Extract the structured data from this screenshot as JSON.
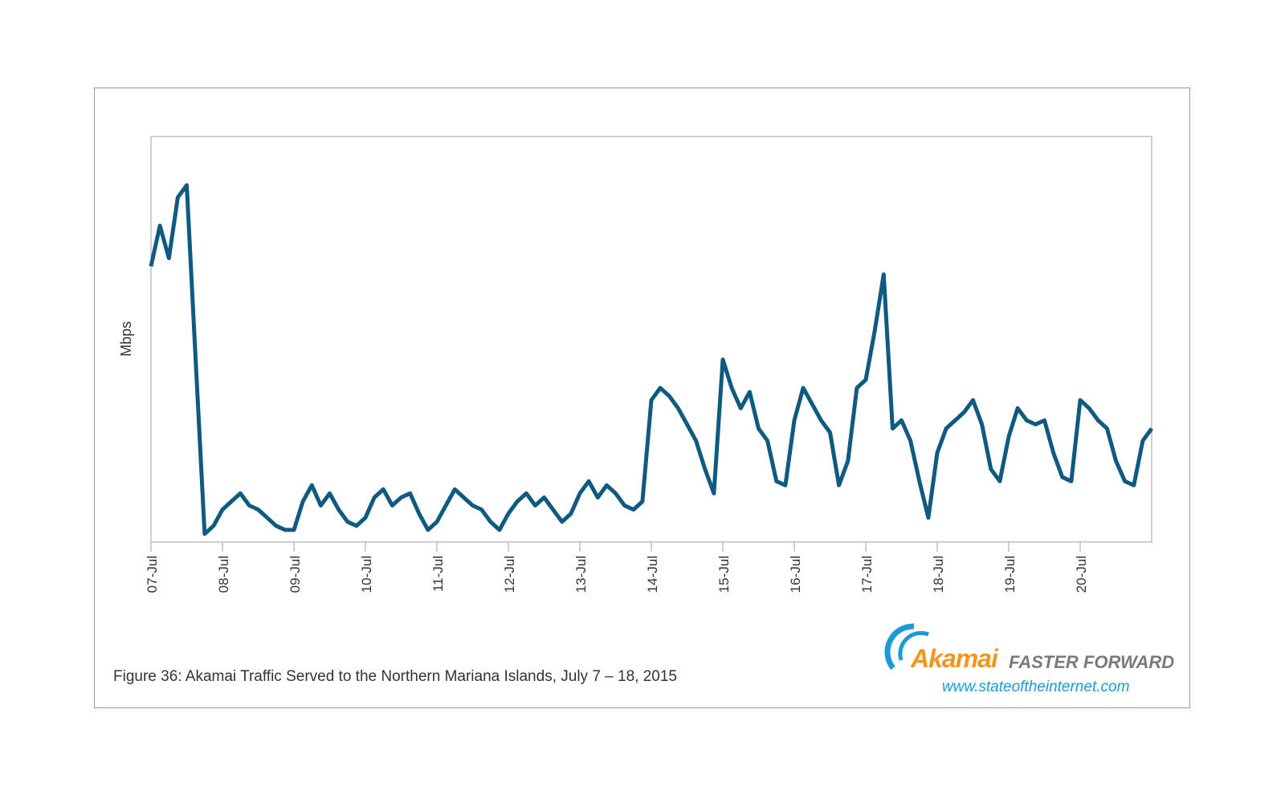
{
  "chart_data": {
    "type": "line",
    "title": "Figure 36: Akamai Traffic Served to  the Northern Mariana Islands, July 7 – 18, 2015",
    "xlabel": "",
    "ylabel": "Mbps",
    "x_unit": "days since 07-Jul (step 0.125)",
    "x_step": 0.125,
    "xlim": [
      0,
      14
    ],
    "ylim": [
      0,
      100
    ],
    "y_note": "relative scale, no y tick labels shown",
    "tick_labels": [
      "07-Jul",
      "08-Jul",
      "09-Jul",
      "10-Jul",
      "11-Jul",
      "12-Jul",
      "13-Jul",
      "14-Jul",
      "15-Jul",
      "16-Jul",
      "17-Jul",
      "18-Jul",
      "19-Jul",
      "20-Jul"
    ],
    "grid": false,
    "series": [
      {
        "name": "Mbps",
        "color": "#0f5a80",
        "values": [
          68,
          78,
          70,
          85,
          88,
          45,
          2,
          4,
          8,
          10,
          12,
          9,
          8,
          6,
          4,
          3,
          3,
          10,
          14,
          9,
          12,
          8,
          5,
          4,
          6,
          11,
          13,
          9,
          11,
          12,
          7,
          3,
          5,
          9,
          13,
          11,
          9,
          8,
          5,
          3,
          7,
          10,
          12,
          9,
          11,
          8,
          5,
          7,
          12,
          15,
          11,
          14,
          12,
          9,
          8,
          10,
          35,
          38,
          36,
          33,
          29,
          25,
          18,
          12,
          45,
          38,
          33,
          37,
          28,
          25,
          15,
          14,
          30,
          38,
          34,
          30,
          27,
          14,
          20,
          38,
          40,
          52,
          66,
          28,
          30,
          25,
          15,
          6,
          22,
          28,
          30,
          32,
          35,
          29,
          18,
          15,
          26,
          33,
          30,
          29,
          30,
          22,
          16,
          15,
          35,
          33,
          30,
          28,
          20,
          15,
          14,
          25,
          28
        ]
      }
    ]
  },
  "logo": {
    "brand": "Akamai",
    "tagline": "FASTER FORWARD",
    "url": "www.stateoftheinternet.com"
  }
}
